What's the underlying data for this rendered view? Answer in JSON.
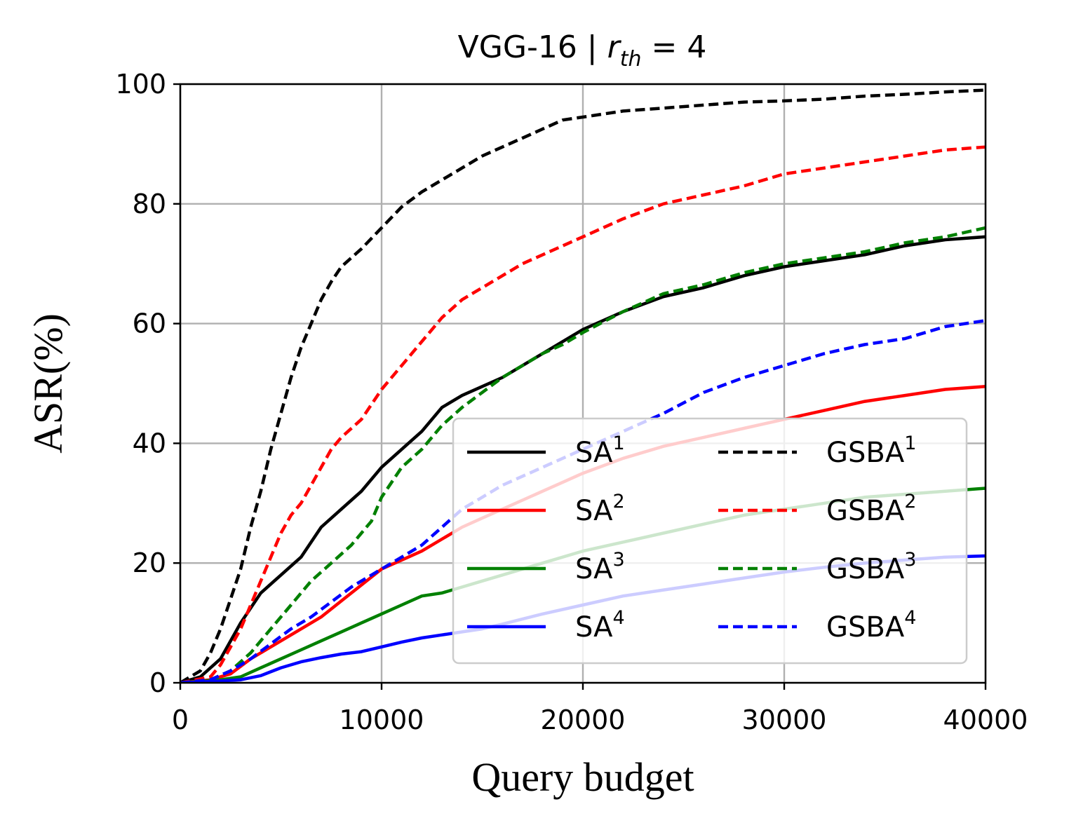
{
  "chart_data": {
    "type": "line",
    "title": "VGG-16  |  r_th = 4",
    "title_parts": {
      "prefix": "VGG-16  |  ",
      "var_main": "r",
      "var_sub": "th",
      "suffix": " = 4"
    },
    "xlabel": "Query budget",
    "ylabel": "ASR(%)",
    "xlim": [
      0,
      40000
    ],
    "ylim": [
      0,
      100
    ],
    "xticks": [
      0,
      10000,
      20000,
      30000,
      40000
    ],
    "yticks": [
      0,
      20,
      40,
      60,
      80,
      100
    ],
    "xtick_labels": [
      "0",
      "10000",
      "20000",
      "30000",
      "40000"
    ],
    "ytick_labels": [
      "0",
      "20",
      "40",
      "60",
      "80",
      "100"
    ],
    "grid": true,
    "legend_position": "lower-right",
    "legend": [
      {
        "base": "SA",
        "sup": "1"
      },
      {
        "base": "GSBA",
        "sup": "1"
      },
      {
        "base": "SA",
        "sup": "2"
      },
      {
        "base": "GSBA",
        "sup": "2"
      },
      {
        "base": "SA",
        "sup": "3"
      },
      {
        "base": "GSBA",
        "sup": "3"
      },
      {
        "base": "SA",
        "sup": "4"
      },
      {
        "base": "GSBA",
        "sup": "4"
      }
    ],
    "series": [
      {
        "name": "SA1",
        "color": "#000000",
        "dash": false,
        "points": [
          [
            0,
            0
          ],
          [
            1000,
            1
          ],
          [
            2000,
            4
          ],
          [
            3000,
            10
          ],
          [
            4000,
            15
          ],
          [
            5000,
            18
          ],
          [
            6000,
            21
          ],
          [
            7000,
            26
          ],
          [
            8000,
            29
          ],
          [
            9000,
            32
          ],
          [
            10000,
            36
          ],
          [
            11000,
            39
          ],
          [
            12000,
            42
          ],
          [
            13000,
            46
          ],
          [
            14000,
            48
          ],
          [
            15000,
            49.5
          ],
          [
            16000,
            51
          ],
          [
            17000,
            53
          ],
          [
            18000,
            55
          ],
          [
            19000,
            57
          ],
          [
            20000,
            59
          ],
          [
            22000,
            62
          ],
          [
            24000,
            64.5
          ],
          [
            26000,
            66
          ],
          [
            28000,
            68
          ],
          [
            30000,
            69.5
          ],
          [
            32000,
            70.5
          ],
          [
            34000,
            71.5
          ],
          [
            36000,
            73
          ],
          [
            38000,
            74
          ],
          [
            40000,
            74.5
          ]
        ]
      },
      {
        "name": "SA2",
        "color": "#ff0000",
        "dash": false,
        "points": [
          [
            0,
            0
          ],
          [
            1500,
            0.5
          ],
          [
            2500,
            1.5
          ],
          [
            3500,
            4
          ],
          [
            4500,
            6
          ],
          [
            5500,
            8
          ],
          [
            7000,
            11
          ],
          [
            8500,
            15
          ],
          [
            10000,
            19
          ],
          [
            11000,
            20.5
          ],
          [
            12000,
            22
          ],
          [
            13000,
            24
          ],
          [
            14000,
            26
          ],
          [
            15000,
            27.5
          ],
          [
            16000,
            29
          ],
          [
            17000,
            30.5
          ],
          [
            18000,
            32
          ],
          [
            19000,
            33.5
          ],
          [
            20000,
            35
          ],
          [
            22000,
            37.5
          ],
          [
            24000,
            39.5
          ],
          [
            26000,
            41
          ],
          [
            28000,
            42.5
          ],
          [
            30000,
            44
          ],
          [
            32000,
            45.5
          ],
          [
            34000,
            47
          ],
          [
            36000,
            48
          ],
          [
            38000,
            49
          ],
          [
            40000,
            49.5
          ]
        ]
      },
      {
        "name": "SA3",
        "color": "#008000",
        "dash": false,
        "points": [
          [
            0,
            0
          ],
          [
            2000,
            0.5
          ],
          [
            3000,
            1
          ],
          [
            4000,
            2.5
          ],
          [
            5000,
            4
          ],
          [
            6000,
            5.5
          ],
          [
            7000,
            7
          ],
          [
            8000,
            8.5
          ],
          [
            9000,
            10
          ],
          [
            10000,
            11.5
          ],
          [
            11000,
            13
          ],
          [
            12000,
            14.5
          ],
          [
            13000,
            15
          ],
          [
            14000,
            16
          ],
          [
            15000,
            17
          ],
          [
            16000,
            18
          ],
          [
            18000,
            20
          ],
          [
            20000,
            22
          ],
          [
            22000,
            23.5
          ],
          [
            24000,
            25
          ],
          [
            26000,
            26.5
          ],
          [
            28000,
            28
          ],
          [
            30000,
            29
          ],
          [
            32000,
            30
          ],
          [
            34000,
            31
          ],
          [
            36000,
            31.5
          ],
          [
            38000,
            32
          ],
          [
            40000,
            32.5
          ]
        ]
      },
      {
        "name": "SA4",
        "color": "#0000ff",
        "dash": false,
        "points": [
          [
            0,
            0
          ],
          [
            2000,
            0.3
          ],
          [
            3000,
            0.5
          ],
          [
            4000,
            1.2
          ],
          [
            5000,
            2.5
          ],
          [
            6000,
            3.5
          ],
          [
            7000,
            4.2
          ],
          [
            8000,
            4.8
          ],
          [
            9000,
            5.2
          ],
          [
            10000,
            6
          ],
          [
            11000,
            6.8
          ],
          [
            12000,
            7.5
          ],
          [
            13000,
            8
          ],
          [
            14000,
            8.5
          ],
          [
            15000,
            9
          ],
          [
            16000,
            9.8
          ],
          [
            18000,
            11.5
          ],
          [
            20000,
            13
          ],
          [
            22000,
            14.5
          ],
          [
            24000,
            15.5
          ],
          [
            26000,
            16.5
          ],
          [
            28000,
            17.5
          ],
          [
            30000,
            18.5
          ],
          [
            32000,
            19.3
          ],
          [
            34000,
            20
          ],
          [
            36000,
            20.5
          ],
          [
            38000,
            21
          ],
          [
            40000,
            21.2
          ]
        ]
      },
      {
        "name": "GSBA1",
        "color": "#000000",
        "dash": true,
        "points": [
          [
            0,
            0
          ],
          [
            1000,
            2
          ],
          [
            1500,
            5
          ],
          [
            2000,
            9
          ],
          [
            2500,
            14
          ],
          [
            3000,
            19
          ],
          [
            3500,
            26
          ],
          [
            4000,
            32
          ],
          [
            4500,
            39
          ],
          [
            5000,
            45
          ],
          [
            5500,
            51
          ],
          [
            6000,
            56
          ],
          [
            6500,
            60
          ],
          [
            7000,
            64
          ],
          [
            7500,
            67
          ],
          [
            8000,
            69.5
          ],
          [
            9000,
            72.5
          ],
          [
            10000,
            76
          ],
          [
            11000,
            79.5
          ],
          [
            12000,
            82
          ],
          [
            13000,
            84
          ],
          [
            14000,
            86
          ],
          [
            15000,
            88
          ],
          [
            16000,
            89.5
          ],
          [
            17000,
            91
          ],
          [
            18000,
            92.5
          ],
          [
            19000,
            94
          ],
          [
            20000,
            94.5
          ],
          [
            22000,
            95.5
          ],
          [
            24000,
            96
          ],
          [
            26000,
            96.5
          ],
          [
            28000,
            97
          ],
          [
            30000,
            97.2
          ],
          [
            32000,
            97.5
          ],
          [
            34000,
            98
          ],
          [
            36000,
            98.3
          ],
          [
            38000,
            98.7
          ],
          [
            40000,
            99
          ]
        ]
      },
      {
        "name": "GSBA2",
        "color": "#ff0000",
        "dash": true,
        "points": [
          [
            0,
            0
          ],
          [
            1500,
            1
          ],
          [
            2000,
            3
          ],
          [
            2500,
            6
          ],
          [
            3000,
            9
          ],
          [
            3500,
            13
          ],
          [
            4000,
            17
          ],
          [
            4500,
            21
          ],
          [
            5000,
            25
          ],
          [
            5500,
            28
          ],
          [
            6000,
            30
          ],
          [
            6500,
            33
          ],
          [
            7000,
            36
          ],
          [
            7500,
            39
          ],
          [
            8000,
            41
          ],
          [
            9000,
            44
          ],
          [
            10000,
            49
          ],
          [
            11000,
            53
          ],
          [
            12000,
            57
          ],
          [
            13000,
            61
          ],
          [
            14000,
            64
          ],
          [
            15000,
            66
          ],
          [
            16000,
            68
          ],
          [
            17000,
            70
          ],
          [
            18000,
            71.5
          ],
          [
            19000,
            73
          ],
          [
            20000,
            74.5
          ],
          [
            22000,
            77.5
          ],
          [
            24000,
            80
          ],
          [
            26000,
            81.5
          ],
          [
            28000,
            83
          ],
          [
            30000,
            85
          ],
          [
            32000,
            86
          ],
          [
            34000,
            87
          ],
          [
            36000,
            88
          ],
          [
            38000,
            89
          ],
          [
            40000,
            89.5
          ]
        ]
      },
      {
        "name": "GSBA3",
        "color": "#008000",
        "dash": true,
        "points": [
          [
            0,
            0
          ],
          [
            1500,
            0.5
          ],
          [
            2500,
            2
          ],
          [
            3500,
            5
          ],
          [
            4500,
            9
          ],
          [
            5500,
            13
          ],
          [
            6500,
            17
          ],
          [
            7500,
            20
          ],
          [
            8500,
            23
          ],
          [
            9500,
            27
          ],
          [
            10000,
            31
          ],
          [
            11000,
            36
          ],
          [
            12000,
            39
          ],
          [
            13000,
            43
          ],
          [
            14000,
            46
          ],
          [
            15000,
            48.5
          ],
          [
            16000,
            51
          ],
          [
            17000,
            53
          ],
          [
            18000,
            55
          ],
          [
            19000,
            56.5
          ],
          [
            20000,
            58.5
          ],
          [
            22000,
            62
          ],
          [
            24000,
            65
          ],
          [
            26000,
            66.5
          ],
          [
            28000,
            68.5
          ],
          [
            30000,
            70
          ],
          [
            32000,
            71
          ],
          [
            34000,
            72
          ],
          [
            36000,
            73.5
          ],
          [
            38000,
            74.5
          ],
          [
            40000,
            76
          ]
        ]
      },
      {
        "name": "GSBA4",
        "color": "#0000ff",
        "dash": true,
        "points": [
          [
            0,
            0
          ],
          [
            1500,
            0.5
          ],
          [
            2500,
            2
          ],
          [
            3500,
            4
          ],
          [
            4500,
            6.5
          ],
          [
            5500,
            9
          ],
          [
            6500,
            11
          ],
          [
            7500,
            13.5
          ],
          [
            8500,
            16
          ],
          [
            10000,
            19
          ],
          [
            11000,
            21
          ],
          [
            12000,
            23
          ],
          [
            13000,
            26
          ],
          [
            14000,
            29
          ],
          [
            15000,
            31
          ],
          [
            16000,
            33
          ],
          [
            18000,
            36
          ],
          [
            20000,
            39
          ],
          [
            22000,
            42
          ],
          [
            24000,
            45
          ],
          [
            26000,
            48.5
          ],
          [
            28000,
            51
          ],
          [
            30000,
            53
          ],
          [
            32000,
            55
          ],
          [
            34000,
            56.5
          ],
          [
            36000,
            57.5
          ],
          [
            38000,
            59.5
          ],
          [
            40000,
            60.5
          ]
        ]
      }
    ]
  }
}
